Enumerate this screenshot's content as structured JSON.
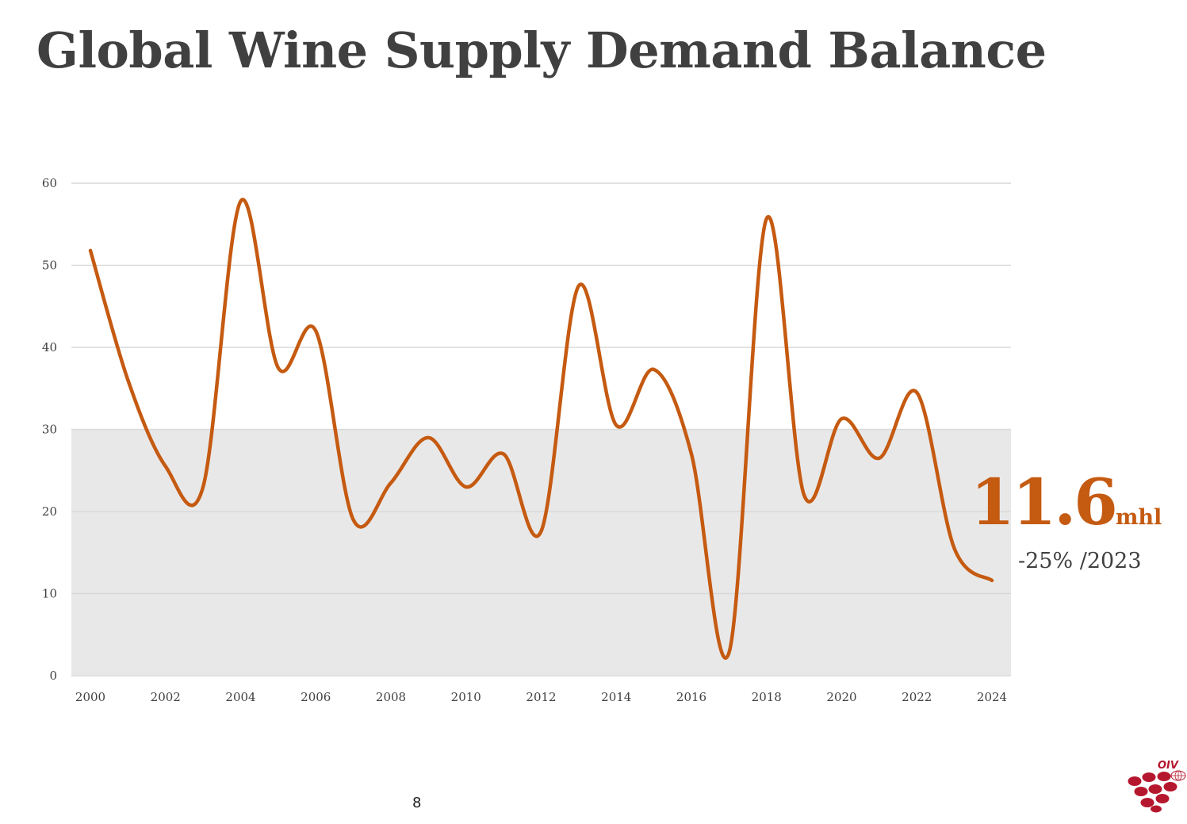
{
  "title": "Global Wine Supply Demand Balance",
  "page_number": "8",
  "colors": {
    "line": "#c55a11",
    "band": "#e9e8e8",
    "grid": "#d9d9d9",
    "title": "#404040",
    "logo": "#b5182e"
  },
  "callout": {
    "value": "11.6",
    "unit": "mhl",
    "change": "-25% /2023"
  },
  "logo": {
    "text": "OIV",
    "icon": "grape-cluster-globe-icon"
  },
  "chart_data": {
    "type": "line",
    "title": "",
    "xlabel": "",
    "ylabel": "",
    "x": [
      2000,
      2001,
      2002,
      2003,
      2004,
      2005,
      2006,
      2007,
      2008,
      2009,
      2010,
      2011,
      2012,
      2013,
      2014,
      2015,
      2016,
      2017,
      2018,
      2019,
      2020,
      2021,
      2022,
      2023,
      2024
    ],
    "series": [
      {
        "name": "",
        "values": [
          51.8,
          36.0,
          25.5,
          23.0,
          57.8,
          37.5,
          42.0,
          19.0,
          23.5,
          29.0,
          23.0,
          27.0,
          17.6,
          47.5,
          30.5,
          37.3,
          27.0,
          2.8,
          55.7,
          22.0,
          31.3,
          26.5,
          34.5,
          15.5,
          11.6
        ]
      }
    ],
    "xticks": [
      "2000",
      "2002",
      "2004",
      "2006",
      "2008",
      "2010",
      "2012",
      "2014",
      "2016",
      "2018",
      "2020",
      "2022",
      "2024"
    ],
    "yticks": [
      "0",
      "10",
      "20",
      "30",
      "40",
      "50",
      "60"
    ],
    "ylim": [
      0,
      60
    ],
    "xlim": [
      2000,
      2024
    ],
    "shaded_band": [
      0,
      30
    ],
    "grid": "horizontal",
    "legend": "none"
  }
}
